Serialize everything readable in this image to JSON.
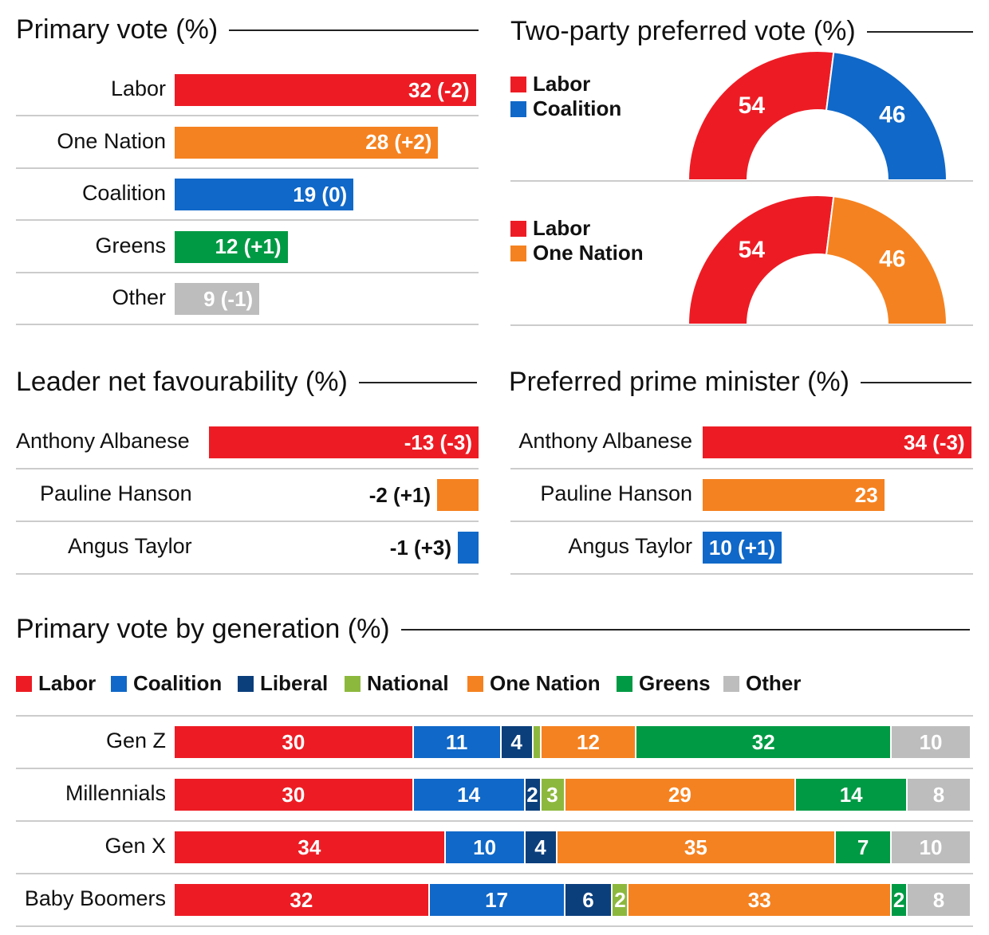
{
  "colors": {
    "Labor": "#ED1C24",
    "One Nation": "#F58220",
    "Coalition": "#1068C8",
    "Liberal": "#0B3F7C",
    "National": "#8DB83E",
    "Greens": "#009A44",
    "Other": "#BDBDBD"
  },
  "chart_data": [
    {
      "type": "bar",
      "title": "Primary vote (%)",
      "categories": [
        "Labor",
        "One Nation",
        "Coalition",
        "Greens",
        "Other"
      ],
      "values": [
        32,
        28,
        19,
        12,
        9
      ],
      "labels": [
        "32 (-2)",
        "28 (+2)",
        "19 (0)",
        "12 (+1)",
        "9 (-1)"
      ]
    },
    {
      "type": "pie",
      "title": "Two-party preferred vote (%)",
      "charts": [
        {
          "legend": [
            "Labor",
            "Coalition"
          ],
          "values": [
            54,
            46
          ]
        },
        {
          "legend": [
            "Labor",
            "One Nation"
          ],
          "values": [
            54,
            46
          ]
        }
      ]
    },
    {
      "type": "bar",
      "title": "Leader net favourability (%)",
      "categories": [
        "Anthony Albanese",
        "Pauline Hanson",
        "Angus Taylor"
      ],
      "values": [
        -13,
        -2,
        -1
      ],
      "labels": [
        "-13 (-3)",
        "-2 (+1)",
        "-1 (+3)"
      ],
      "parties": [
        "Labor",
        "One Nation",
        "Coalition"
      ]
    },
    {
      "type": "bar",
      "title": "Preferred prime minister (%)",
      "categories": [
        "Anthony Albanese",
        "Pauline Hanson",
        "Angus Taylor"
      ],
      "values": [
        34,
        23,
        10
      ],
      "labels": [
        "34 (-3)",
        "23",
        "10 (+1)"
      ],
      "parties": [
        "Labor",
        "One Nation",
        "Coalition"
      ]
    },
    {
      "type": "bar",
      "stacked": true,
      "title": "Primary vote by generation (%)",
      "legend": [
        "Labor",
        "Coalition",
        "Liberal",
        "National",
        "One Nation",
        "Greens",
        "Other"
      ],
      "categories": [
        "Gen Z",
        "Millennials",
        "Gen X",
        "Baby Boomers"
      ],
      "series": [
        {
          "name": "Labor",
          "values": [
            30,
            30,
            34,
            32
          ]
        },
        {
          "name": "Coalition",
          "values": [
            11,
            14,
            10,
            17
          ]
        },
        {
          "name": "Liberal",
          "values": [
            4,
            2,
            4,
            6
          ]
        },
        {
          "name": "National",
          "values": [
            1,
            3,
            0,
            2
          ]
        },
        {
          "name": "One Nation",
          "values": [
            12,
            29,
            35,
            33
          ]
        },
        {
          "name": "Greens",
          "values": [
            32,
            14,
            7,
            2
          ]
        },
        {
          "name": "Other",
          "values": [
            10,
            8,
            10,
            8
          ]
        }
      ],
      "hidden_labels": {
        "Gen Z": [
          "National"
        ]
      }
    }
  ]
}
